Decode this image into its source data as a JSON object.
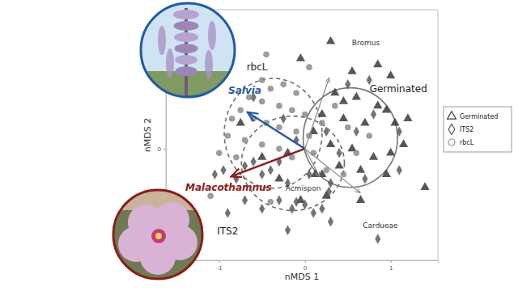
{
  "chart_data": {
    "type": "scatter",
    "x_label": "nMDS 1",
    "y_label": "nMDS 2",
    "xlim": [
      -1.62,
      1.55
    ],
    "ylim": [
      -1.3,
      1.62
    ],
    "xticks": [
      -1,
      0,
      1
    ],
    "yticks": [
      0
    ],
    "grid": false,
    "legend": "right",
    "series": [
      {
        "name": "Germinated",
        "marker": "triangle",
        "color": "#3a3a3a",
        "x": [
          0.3,
          0.85,
          1.0,
          0.55,
          0.35,
          0.6,
          0.85,
          1.05,
          0.95,
          1.2,
          0.7,
          0.45,
          0.2,
          0.1,
          0.3,
          0.55,
          0.8,
          0.65,
          1.0,
          0.95,
          0.4,
          0.2,
          0.12,
          -0.05,
          -0.3,
          -0.5,
          -0.75,
          -0.05,
          0.65,
          1.15,
          0.45,
          1.4,
          -0.2,
          0.25
        ],
        "values": [
          1.25,
          0.98,
          0.85,
          0.9,
          0.65,
          0.6,
          0.5,
          0.3,
          0.45,
          0.35,
          0.3,
          0.35,
          0.4,
          0.2,
          0.05,
          0.0,
          -0.1,
          -0.25,
          -0.05,
          -0.3,
          -0.2,
          -0.3,
          -0.3,
          -0.6,
          -0.35,
          -0.1,
          0.3,
          1.05,
          -0.6,
          0.05,
          0.55,
          -0.45,
          -0.05,
          -0.55
        ]
      },
      {
        "name": "ITS2",
        "marker": "diamond",
        "color": "#5a5a5a",
        "x": [
          -1.05,
          -0.95,
          -0.8,
          -0.7,
          -0.6,
          -0.5,
          -0.4,
          -0.3,
          -0.2,
          -0.1,
          0.0,
          0.1,
          0.2,
          0.28,
          0.3,
          0.05,
          -0.15,
          -0.3,
          -0.5,
          -0.7,
          -0.9,
          0.3,
          -0.2,
          0.85,
          0.6,
          0.8,
          0.5,
          1.1,
          0.75,
          0.7,
          0.4,
          0.25,
          -0.25,
          -0.6,
          -0.1,
          1.1
        ],
        "values": [
          -0.3,
          -0.25,
          -0.35,
          -0.2,
          -0.15,
          -0.3,
          -0.25,
          -0.15,
          -0.4,
          -0.62,
          -0.65,
          -0.75,
          -0.7,
          -0.5,
          -0.4,
          -0.3,
          -0.7,
          -0.6,
          -0.7,
          -0.6,
          -0.75,
          -0.85,
          -0.95,
          -1.05,
          0.2,
          0.4,
          0.75,
          0.2,
          0.8,
          -0.35,
          -0.05,
          0.2,
          0.35,
          0.6,
          0.1,
          -0.25
        ]
      },
      {
        "name": "rbcL",
        "marker": "circle",
        "color": "#8c8c8c",
        "x": [
          -0.45,
          -0.5,
          -0.4,
          -0.25,
          -0.1,
          -0.65,
          -0.5,
          -0.3,
          -0.15,
          0.0,
          -0.75,
          -0.6,
          -0.45,
          -0.3,
          -0.1,
          0.05,
          -0.9,
          -0.7,
          -0.5,
          -0.3,
          -0.15,
          0.1,
          -1.0,
          -0.8,
          0.2,
          0.35,
          0.5,
          0.6,
          0.45,
          0.25,
          -1.1,
          -0.85,
          0.05,
          -0.4,
          0.75
        ],
        "values": [
          1.1,
          0.8,
          0.7,
          0.75,
          0.65,
          0.6,
          0.55,
          0.5,
          0.45,
          0.4,
          0.45,
          0.35,
          0.3,
          0.25,
          0.2,
          0.15,
          0.15,
          0.1,
          0.05,
          0.0,
          -0.1,
          -0.05,
          -0.05,
          -0.1,
          0.3,
          0.5,
          0.25,
          -0.05,
          -0.3,
          -0.25,
          -0.55,
          0.35,
          0.95,
          -0.62,
          0.15
        ]
      }
    ],
    "ellipses": [
      {
        "name": "rbcL",
        "center": [
          -0.37,
          0.18
        ],
        "radii": [
          0.57,
          0.64
        ],
        "line_style": "dashed",
        "color": "#6e6e6e",
        "label_xy": [
          -0.68,
          0.91
        ]
      },
      {
        "name": "ITS2",
        "center": [
          -0.14,
          -0.17
        ],
        "radii": [
          0.6,
          0.55
        ],
        "line_style": "dashed",
        "color": "#6e6e6e",
        "label_xy": [
          -0.9,
          -1.0
        ]
      },
      {
        "name": "Germinated",
        "center": [
          0.53,
          0.13
        ],
        "radii": [
          0.55,
          0.58
        ],
        "line_style": "solid",
        "color": "#777777",
        "label_xy": [
          1.09,
          0.66
        ]
      }
    ],
    "arrows": [
      {
        "name": "Salvia",
        "from": [
          0,
          0
        ],
        "to": [
          -0.66,
          0.42
        ],
        "color": "#1f5aa6",
        "label_xy": [
          -0.7,
          0.64
        ]
      },
      {
        "name": "Malacothamnus",
        "from": [
          0,
          0
        ],
        "to": [
          -0.85,
          -0.32
        ],
        "color": "#8b1c1c",
        "label_xy": [
          -0.89,
          -0.49
        ]
      },
      {
        "name": "Bromus",
        "from": [
          0,
          0
        ],
        "to": [
          0.28,
          0.82
        ],
        "color": "#8a8a8a",
        "label_xy": [
          0.71,
          1.21
        ]
      },
      {
        "name": "Acmispon",
        "from": [
          0,
          0
        ],
        "to": [
          0.17,
          -0.32
        ],
        "color": "#8a8a8a",
        "label_xy": [
          -0.02,
          -0.49
        ]
      },
      {
        "name": "Cardueae",
        "from": [
          0,
          0
        ],
        "to": [
          0.64,
          -0.51
        ],
        "color": "#8a8a8a",
        "label_xy": [
          0.88,
          -0.92
        ]
      }
    ]
  }
}
